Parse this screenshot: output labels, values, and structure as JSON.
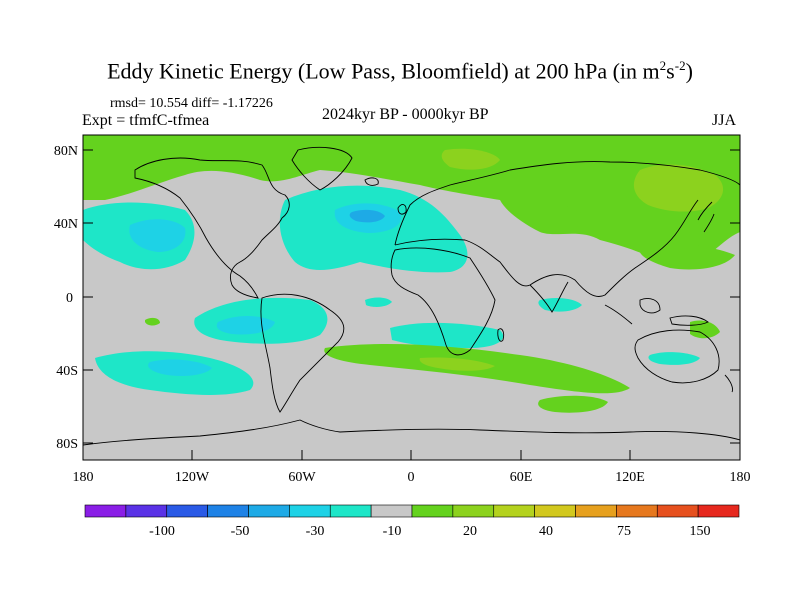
{
  "title": {
    "main": "Eddy Kinetic Energy (Low Pass, Bloomfield) at 200 hPa (in m",
    "sup1": "2",
    "mid": "s",
    "sup2": "-2",
    "end": ")"
  },
  "stats": "rmsd= 10.554 diff= -1.17226",
  "experiment": "Expt = tfmfC-tfmea",
  "period": "2024kyr BP - 0000kyr BP",
  "season": "JJA",
  "lat_labels": [
    "80N",
    "40N",
    "0",
    "40S",
    "80S"
  ],
  "lon_labels": [
    "180",
    "120W",
    "60W",
    "0",
    "60E",
    "120E",
    "180"
  ],
  "colorbar": {
    "colors": [
      "#8a1ee6",
      "#5a32e6",
      "#2a5ae6",
      "#1e82e6",
      "#1eaae6",
      "#1ed2e6",
      "#1ee6c8",
      "#c8c8c8",
      "#64d21e",
      "#8cd21e",
      "#b4d21e",
      "#d2c81e",
      "#e6a01e",
      "#e6781e",
      "#e6501e",
      "#e6281e"
    ],
    "labels": [
      "-100",
      "-50",
      "-30",
      "-10",
      "20",
      "40",
      "75",
      "150"
    ]
  },
  "map_colors": {
    "background": "#c8c8c8",
    "positive_low": "#64d21e",
    "positive_mid": "#8cd21e",
    "negative_low": "#1ee6c8",
    "negative_mid": "#1ed2e6",
    "negative_high": "#1eaae6"
  }
}
